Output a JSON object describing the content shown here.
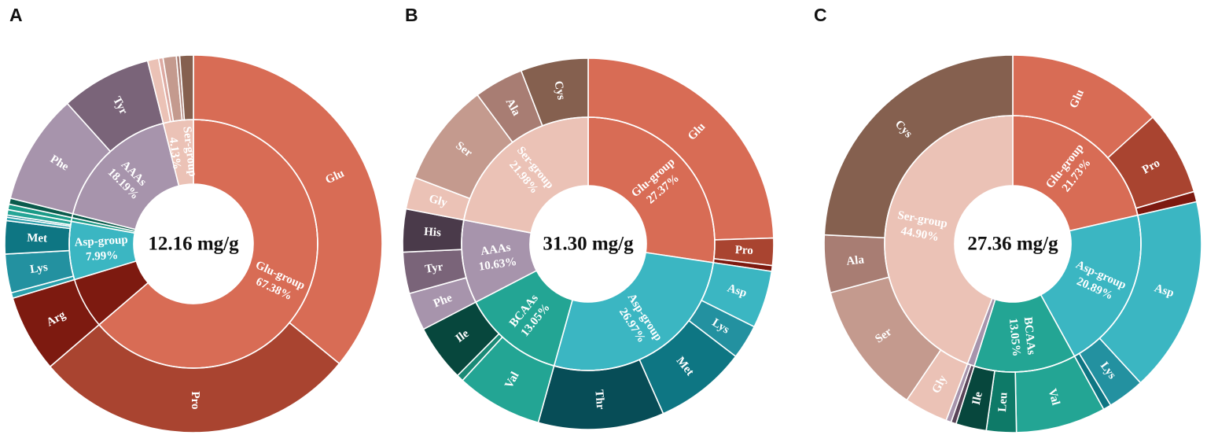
{
  "chart_data": [
    {
      "type": "sunburst",
      "panel": "A",
      "center_label": "12.16 mg/g",
      "groups": [
        {
          "name": "Glu-group",
          "percent_label": "67.38%",
          "value": 67.38,
          "color": "#d86c55",
          "label_color": "#ffffff",
          "children": [
            {
              "name": "Glu",
              "value": 38.0,
              "color": "#d86c55"
            },
            {
              "name": "Pro",
              "value": 29.38,
              "color": "#a94430"
            }
          ]
        },
        {
          "name": "Arg",
          "value": 7.0,
          "color": "#7d1a10",
          "ring": "outer-only"
        },
        {
          "name": "Asp-group",
          "percent_label": "7.99%",
          "value": 7.99,
          "color": "#3bb6c2",
          "label_color": "#ffffff",
          "children": [
            {
              "name": "",
              "value": 0.5,
              "color": "#2aa0ac"
            },
            {
              "name": "Lys",
              "value": 3.5,
              "color": "#2391a0"
            },
            {
              "name": "Met",
              "value": 3.0,
              "color": "#0e7683"
            },
            {
              "name": "",
              "value": 0.3,
              "color": "#2aa0ac"
            },
            {
              "name": "",
              "value": 0.2,
              "color": "#1b8896"
            },
            {
              "name": "",
              "value": 0.49,
              "color": "#26a596"
            }
          ]
        },
        {
          "name": "",
          "value": 1.04,
          "color": "#1f9f8d",
          "ring": "outer-only",
          "parts": [
            {
              "name": "",
              "value": 0.5,
              "color": "#1a9a86"
            },
            {
              "name": "",
              "value": 0.54,
              "color": "#0a5b4c"
            }
          ]
        },
        {
          "name": "AAAs",
          "percent_label": "18.19%",
          "value": 18.19,
          "color": "#a794ac",
          "label_color": "#ffffff",
          "children": [
            {
              "name": "Phe",
              "value": 10.0,
              "color": "#a794ac"
            },
            {
              "name": "Tyr",
              "value": 8.19,
              "color": "#7a6479"
            }
          ]
        },
        {
          "name": "Ser-group",
          "percent_label": "4.13%",
          "value": 4.13,
          "color": "#ebc2b6",
          "label_color": "#ffffff",
          "children": [
            {
              "name": "",
              "value": 1.0,
              "color": "#ebc2b6"
            },
            {
              "name": "",
              "value": 0.4,
              "color": "#ddaaa2"
            },
            {
              "name": "",
              "value": 1.2,
              "color": "#c49a8e"
            },
            {
              "name": "",
              "value": 0.3,
              "color": "#a87d73"
            },
            {
              "name": "",
              "value": 1.23,
              "color": "#85604f"
            }
          ]
        }
      ]
    },
    {
      "type": "sunburst",
      "panel": "B",
      "center_label": "31.30 mg/g",
      "groups": [
        {
          "name": "Glu-group",
          "percent_label": "27.37%",
          "value": 27.37,
          "color": "#d86c55",
          "label_color": "#ffffff",
          "children": [
            {
              "name": "Glu",
              "value": 24.5,
              "color": "#d86c55"
            },
            {
              "name": "Pro",
              "value": 2.37,
              "color": "#a94430"
            },
            {
              "name": "",
              "value": 0.5,
              "color": "#7d1a10"
            }
          ]
        },
        {
          "name": "Asp-group",
          "percent_label": "26.97%",
          "value": 26.97,
          "color": "#3bb6c2",
          "label_color": "#ffffff",
          "children": [
            {
              "name": "Asp",
              "value": 5.0,
              "color": "#3bb6c2"
            },
            {
              "name": "Lys",
              "value": 3.0,
              "color": "#2391a0"
            },
            {
              "name": "Met",
              "value": 8.0,
              "color": "#0e7683"
            },
            {
              "name": "Thr",
              "value": 10.97,
              "color": "#074d57"
            }
          ]
        },
        {
          "name": "BCAAs",
          "percent_label": "13.05%",
          "value": 13.05,
          "color": "#23a594",
          "label_color": "#ffffff",
          "children": [
            {
              "name": "Val",
              "value": 7.5,
              "color": "#23a594"
            },
            {
              "name": "",
              "value": 0.6,
              "color": "#1a8a76"
            },
            {
              "name": "Ile",
              "value": 4.95,
              "color": "#07473d"
            }
          ]
        },
        {
          "name": "AAAs",
          "percent_label": "10.63%",
          "value": 10.63,
          "color": "#a794ac",
          "label_color": "#ffffff",
          "children": [
            {
              "name": "Phe",
              "value": 3.3,
              "color": "#a794ac"
            },
            {
              "name": "Tyr",
              "value": 3.6,
              "color": "#7a6479"
            },
            {
              "name": "His",
              "value": 3.73,
              "color": "#4a3a4a"
            }
          ]
        },
        {
          "name": "Ser-group",
          "percent_label": "21.98%",
          "value": 21.98,
          "color": "#ebc2b6",
          "label_color": "#ffffff",
          "children": [
            {
              "name": "Gly",
              "value": 2.8,
              "color": "#ebc2b6"
            },
            {
              "name": "Ser",
              "value": 9.0,
              "color": "#c49a8e"
            },
            {
              "name": "Ala",
              "value": 4.3,
              "color": "#a87d73"
            },
            {
              "name": "Cys",
              "value": 5.88,
              "color": "#85604f"
            }
          ]
        }
      ]
    },
    {
      "type": "sunburst",
      "panel": "C",
      "center_label": "27.36 mg/g",
      "groups": [
        {
          "name": "Glu-group",
          "percent_label": "21.73%",
          "value": 21.73,
          "color": "#d86c55",
          "label_color": "#ffffff",
          "children": [
            {
              "name": "Glu",
              "value": 13.5,
              "color": "#d86c55"
            },
            {
              "name": "Pro",
              "value": 7.33,
              "color": "#a94430"
            },
            {
              "name": "",
              "value": 0.9,
              "color": "#7d1a10"
            }
          ]
        },
        {
          "name": "Asp-group",
          "percent_label": "20.89%",
          "value": 20.89,
          "color": "#3bb6c2",
          "label_color": "#ffffff",
          "children": [
            {
              "name": "Asp",
              "value": 17.0,
              "color": "#3bb6c2"
            },
            {
              "name": "Lys",
              "value": 3.2,
              "color": "#2391a0"
            },
            {
              "name": "",
              "value": 0.69,
              "color": "#0e7683"
            }
          ]
        },
        {
          "name": "BCAAs",
          "percent_label": "13.05%",
          "value": 13.05,
          "color": "#23a594",
          "label_color": "#ffffff",
          "children": [
            {
              "name": "Val",
              "value": 7.8,
              "color": "#23a594"
            },
            {
              "name": "Leu",
              "value": 2.6,
              "color": "#0e7a68"
            },
            {
              "name": "Ile",
              "value": 2.65,
              "color": "#07473d"
            }
          ]
        },
        {
          "name": "",
          "value": 0.9,
          "color": "#a794ac",
          "ring": "both",
          "children": [
            {
              "name": "",
              "value": 0.45,
              "color": "#5a4458"
            },
            {
              "name": "",
              "value": 0.45,
              "color": "#a794ac"
            }
          ]
        },
        {
          "name": "Ser-group",
          "percent_label": "44.90%",
          "value": 44.9,
          "color": "#ebc2b6",
          "label_color": "#ffffff",
          "children": [
            {
              "name": "Gly",
              "value": 3.8,
              "color": "#ebc2b6"
            },
            {
              "name": "Ser",
              "value": 11.5,
              "color": "#c49a8e"
            },
            {
              "name": "Ala",
              "value": 5.0,
              "color": "#a87d73"
            },
            {
              "name": "Cys",
              "value": 24.6,
              "color": "#85604f"
            }
          ]
        }
      ]
    }
  ]
}
